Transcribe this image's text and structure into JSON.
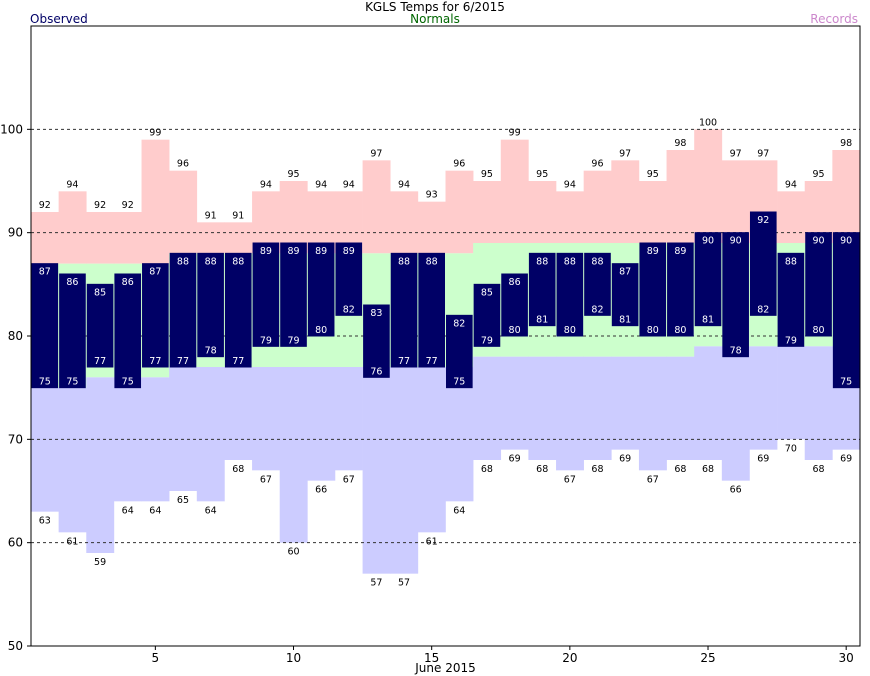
{
  "header": {
    "title": "KGLS Temps for 6/2015",
    "normals_label": "Normals",
    "observed_label": "Observed",
    "records_label": "Records"
  },
  "colors": {
    "observed": "#000066",
    "normals": "#ccffcc",
    "record_high": "#ffcccc",
    "record_low": "#ccccff",
    "observed_text": "#000066",
    "normals_text": "#006600",
    "records_text": "#cc88cc"
  },
  "chart_data": {
    "type": "bar",
    "xlabel": "June 2015",
    "ylim": [
      50,
      110
    ],
    "yticks": [
      50,
      60,
      70,
      80,
      90,
      100
    ],
    "gridlines": [
      60,
      70,
      80,
      90,
      100
    ],
    "xticks": [
      5,
      10,
      15,
      20,
      25,
      30
    ],
    "days": [
      1,
      2,
      3,
      4,
      5,
      6,
      7,
      8,
      9,
      10,
      11,
      12,
      13,
      14,
      15,
      16,
      17,
      18,
      19,
      20,
      21,
      22,
      23,
      24,
      25,
      26,
      27,
      28,
      29,
      30
    ],
    "observed_high": [
      87,
      86,
      85,
      86,
      87,
      88,
      88,
      88,
      89,
      89,
      89,
      89,
      83,
      88,
      88,
      82,
      85,
      86,
      88,
      88,
      88,
      87,
      89,
      89,
      90,
      90,
      92,
      88,
      90,
      90
    ],
    "observed_low": [
      75,
      75,
      77,
      75,
      77,
      77,
      78,
      77,
      79,
      79,
      80,
      82,
      76,
      77,
      77,
      75,
      79,
      80,
      81,
      80,
      82,
      81,
      80,
      80,
      81,
      78,
      82,
      79,
      80,
      75
    ],
    "normal_high": [
      87,
      87,
      87,
      87,
      87,
      88,
      88,
      88,
      88,
      88,
      88,
      88,
      88,
      88,
      88,
      88,
      89,
      89,
      89,
      89,
      89,
      89,
      89,
      89,
      89,
      89,
      89,
      89,
      89,
      89
    ],
    "normal_low": [
      75,
      75,
      76,
      76,
      76,
      77,
      77,
      77,
      77,
      77,
      77,
      77,
      77,
      77,
      77,
      77,
      78,
      78,
      78,
      78,
      78,
      78,
      78,
      78,
      79,
      79,
      79,
      79,
      79,
      79
    ],
    "record_high": [
      92,
      94,
      92,
      92,
      99,
      96,
      91,
      91,
      94,
      95,
      94,
      94,
      97,
      94,
      93,
      96,
      95,
      99,
      95,
      94,
      96,
      97,
      95,
      98,
      100,
      97,
      97,
      94,
      95,
      98
    ],
    "record_low": [
      63,
      61,
      59,
      64,
      64,
      65,
      64,
      68,
      67,
      60,
      66,
      67,
      57,
      57,
      61,
      64,
      68,
      69,
      68,
      67,
      68,
      69,
      67,
      68,
      68,
      66,
      69,
      70,
      68,
      69
    ]
  }
}
